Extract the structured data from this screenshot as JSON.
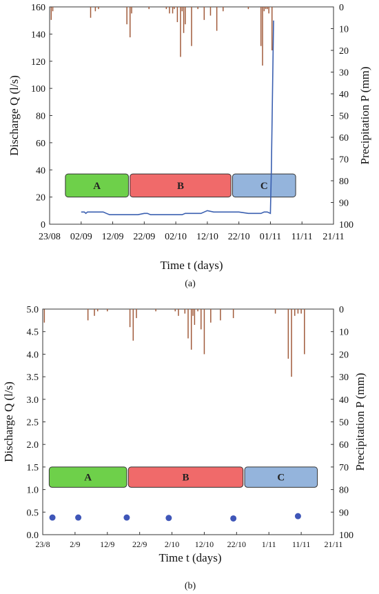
{
  "figure": {
    "panel_a_caption": "(a)",
    "panel_b_caption": "(b)"
  },
  "chart_data": [
    {
      "type": "line",
      "panel": "a",
      "xlabel": "Time t (days)",
      "ylabel": "Discharge Q (l/s)",
      "y2label": "Precipitation P (mm)",
      "x_ticks": [
        "23/08",
        "02/09",
        "12/09",
        "22/09",
        "02/10",
        "12/10",
        "22/10",
        "01/11",
        "11/11",
        "21/11"
      ],
      "x_tick_days": [
        0,
        10,
        20,
        30,
        40,
        50,
        60,
        70,
        80,
        90
      ],
      "xlim": [
        0,
        90
      ],
      "y_ticks": [
        "0",
        "20",
        "40",
        "60",
        "80",
        "100",
        "120",
        "140",
        "160"
      ],
      "ylim": [
        0,
        160
      ],
      "y2_ticks": [
        "0",
        "10",
        "20",
        "30",
        "40",
        "50",
        "60",
        "70",
        "80",
        "90",
        "100"
      ],
      "y2lim": [
        0,
        100
      ],
      "y2_inverted": true,
      "grid": false,
      "colors": {
        "discharge": "#3a5fb0",
        "precipitation": "#a05a3a"
      },
      "periods": [
        {
          "label": "A",
          "start_day": 5,
          "end_day": 25,
          "y_low": 20,
          "y_high": 37,
          "color": "#6ed04a"
        },
        {
          "label": "B",
          "start_day": 25.5,
          "end_day": 57.5,
          "y_low": 20,
          "y_high": 37,
          "color": "#f06a6a"
        },
        {
          "label": "C",
          "start_day": 58,
          "end_day": 78,
          "y_low": 20,
          "y_high": 37,
          "color": "#94b4dc"
        }
      ],
      "discharge_series": {
        "x_day": [
          10,
          11,
          11.5,
          12,
          13,
          14,
          15,
          17,
          18,
          19,
          20,
          22,
          24,
          26,
          28,
          30,
          30.5,
          31,
          32,
          35,
          40,
          42,
          43,
          44,
          45,
          46,
          48,
          49,
          50,
          52,
          55,
          58,
          60,
          63,
          65,
          66,
          67,
          68,
          69,
          70,
          70.3,
          71
        ],
        "y": [
          9,
          9,
          8,
          9,
          9,
          9,
          9,
          9,
          8,
          7,
          7,
          7,
          7,
          7,
          7,
          8,
          8,
          8,
          7,
          7,
          7,
          7,
          8,
          8,
          8,
          8,
          8,
          9,
          10,
          9,
          9,
          9,
          9,
          8,
          8,
          8,
          8,
          9,
          9,
          8,
          40,
          150
        ]
      },
      "precipitation": {
        "day": [
          0.5,
          1,
          13,
          14.5,
          15.5,
          24.5,
          25.5,
          26,
          31.5,
          37,
          38,
          39,
          39.5,
          40.5,
          41.5,
          42,
          42.5,
          43,
          45,
          47,
          49,
          51,
          53,
          55,
          63,
          67,
          67.5,
          68,
          68.5,
          69,
          69.5,
          70.5
        ],
        "mm": [
          6,
          2,
          5,
          2,
          1,
          8,
          14,
          3,
          1,
          1,
          3,
          3,
          1,
          7,
          23,
          2,
          12,
          8,
          18,
          1,
          6,
          4,
          11,
          2,
          1,
          18,
          27,
          2,
          1,
          1,
          3,
          20
        ]
      }
    },
    {
      "type": "scatter",
      "panel": "b",
      "xlabel": "Time t (days)",
      "ylabel": "Discharge Q (l/s)",
      "y2label": "Precipitation P (mm)",
      "x_ticks": [
        "23/8",
        "2/9",
        "12/9",
        "22/9",
        "2/10",
        "12/10",
        "22/10",
        "1/11",
        "11/11",
        "21/11"
      ],
      "x_tick_days": [
        0,
        10,
        20,
        30,
        40,
        50,
        60,
        70,
        80,
        90
      ],
      "xlim": [
        0,
        90
      ],
      "y_ticks": [
        "0.0",
        "0.5",
        "1.0",
        "1.5",
        "2.0",
        "2.5",
        "3.0",
        "3.5",
        "4.0",
        "4.5",
        "5.0"
      ],
      "ylim": [
        0,
        5
      ],
      "y2_ticks": [
        "0",
        "10",
        "20",
        "30",
        "40",
        "50",
        "60",
        "70",
        "80",
        "90",
        "100"
      ],
      "y2lim": [
        0,
        100
      ],
      "y2_inverted": true,
      "grid": false,
      "colors": {
        "discharge": "#3f56b8",
        "precipitation": "#a05a3a"
      },
      "periods": [
        {
          "label": "A",
          "start_day": 2,
          "end_day": 26,
          "y_low": 1.05,
          "y_high": 1.5,
          "color": "#6ed04a"
        },
        {
          "label": "B",
          "start_day": 26.5,
          "end_day": 62,
          "y_low": 1.05,
          "y_high": 1.5,
          "color": "#f06a6a"
        },
        {
          "label": "C",
          "start_day": 62.5,
          "end_day": 85,
          "y_low": 1.05,
          "y_high": 1.5,
          "color": "#94b4dc"
        }
      ],
      "discharge_points": {
        "x_day": [
          3,
          11,
          26,
          39,
          59,
          79
        ],
        "y": [
          0.38,
          0.38,
          0.38,
          0.37,
          0.36,
          0.41
        ]
      },
      "precipitation": {
        "day": [
          0.5,
          14,
          16,
          17,
          20,
          27,
          28,
          29,
          35,
          41,
          42,
          44,
          45,
          46,
          46.5,
          47,
          48,
          49,
          50,
          52,
          55,
          59,
          72,
          76,
          77,
          78,
          79,
          80,
          81
        ],
        "mm": [
          6,
          5,
          3,
          1,
          1,
          8,
          14,
          4,
          1,
          1,
          3,
          2,
          13,
          18,
          3,
          7,
          1,
          9,
          20,
          6,
          5,
          4,
          2,
          22,
          30,
          3,
          2,
          2,
          20
        ]
      }
    }
  ]
}
